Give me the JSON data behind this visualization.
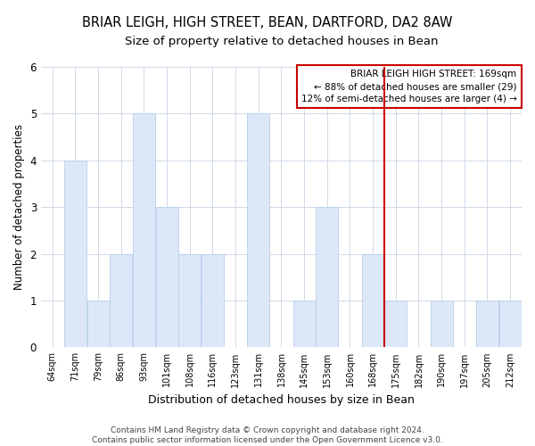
{
  "title": "BRIAR LEIGH, HIGH STREET, BEAN, DARTFORD, DA2 8AW",
  "subtitle": "Size of property relative to detached houses in Bean",
  "xlabel": "Distribution of detached houses by size in Bean",
  "ylabel": "Number of detached properties",
  "categories": [
    "64sqm",
    "71sqm",
    "79sqm",
    "86sqm",
    "93sqm",
    "101sqm",
    "108sqm",
    "116sqm",
    "123sqm",
    "131sqm",
    "138sqm",
    "145sqm",
    "153sqm",
    "160sqm",
    "168sqm",
    "175sqm",
    "182sqm",
    "190sqm",
    "197sqm",
    "205sqm",
    "212sqm"
  ],
  "values": [
    0,
    4,
    1,
    2,
    5,
    3,
    2,
    2,
    0,
    5,
    0,
    1,
    3,
    0,
    2,
    1,
    0,
    1,
    0,
    1,
    1
  ],
  "bar_color": "#dce8f8",
  "bar_edge_color": "#b8cfe8",
  "grid_color": "#d0d8e8",
  "background_color": "#ffffff",
  "vline_x_index": 14,
  "vline_color": "#cc0000",
  "annotation_box_text": "BRIAR LEIGH HIGH STREET: 169sqm\n← 88% of detached houses are smaller (29)\n12% of semi-detached houses are larger (4) →",
  "annotation_box_color": "#cc0000",
  "footer": "Contains HM Land Registry data © Crown copyright and database right 2024.\nContains public sector information licensed under the Open Government Licence v3.0.",
  "ylim": [
    0,
    6
  ],
  "title_fontsize": 10.5,
  "subtitle_fontsize": 9.5,
  "tick_fontsize": 7,
  "ylabel_fontsize": 8.5,
  "xlabel_fontsize": 9,
  "footer_fontsize": 6.5
}
